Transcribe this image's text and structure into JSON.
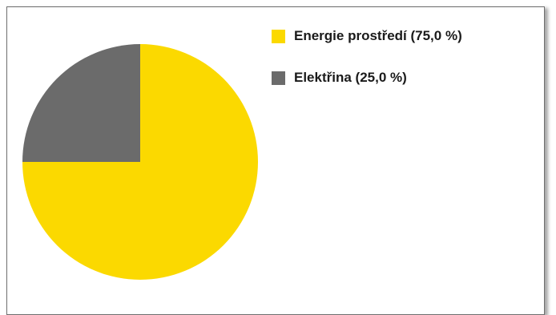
{
  "chart_data": {
    "type": "pie",
    "title": "",
    "slices": [
      {
        "name": "Energie prostředí",
        "value": 75.0,
        "color": "#FBD900",
        "label": "Energie prostředí (75,0 %)"
      },
      {
        "name": "Elektřina",
        "value": 25.0,
        "color": "#6B6B6B",
        "label": "Elektřina (25,0 %)"
      }
    ],
    "legend_position": "top-right"
  }
}
